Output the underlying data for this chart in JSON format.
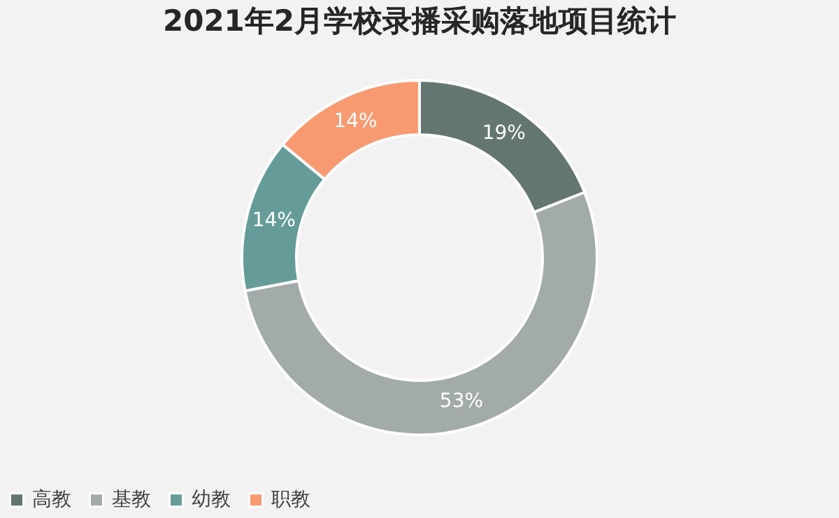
{
  "chart_data": {
    "type": "donut",
    "title": "2021年2月学校录播采购落地项目统计",
    "categories": [
      "高教",
      "基教",
      "幼教",
      "职教"
    ],
    "values": [
      19,
      53,
      14,
      14
    ],
    "colors": [
      "#637671",
      "#a3aaaa",
      "#659c99",
      "#f79a72"
    ],
    "value_labels": [
      "19%",
      "53%",
      "14%",
      "14%"
    ],
    "legend": "bottom"
  }
}
